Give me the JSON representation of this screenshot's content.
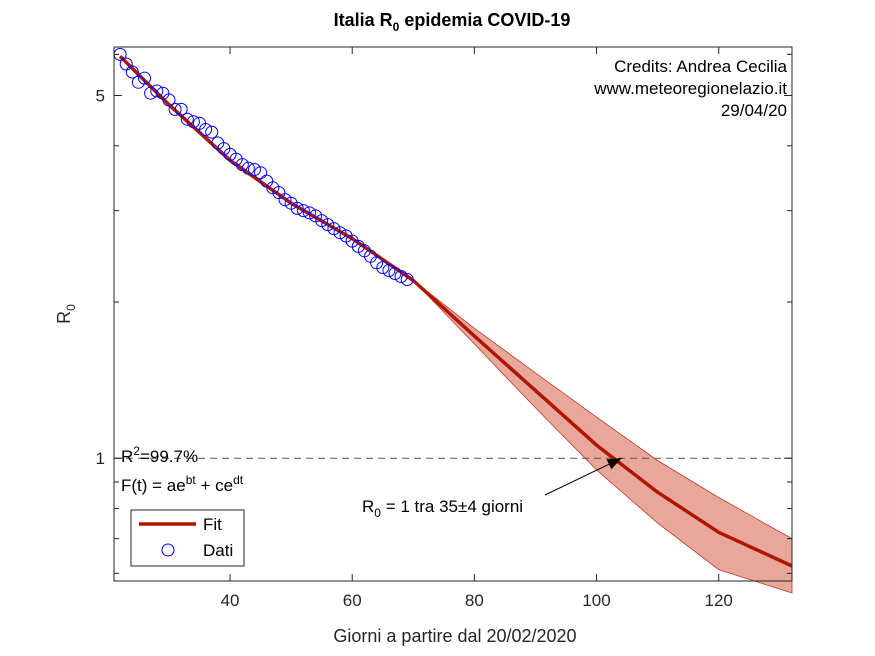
{
  "chart_data": {
    "type": "scatter",
    "title": {
      "prefix": "Italia R",
      "subscript": "0",
      "suffix": " epidemia COVID-19"
    },
    "xlabel": "Giorni a partire dal 20/02/2020",
    "ylabel": {
      "main": "R",
      "subscript": "0"
    },
    "xlim": [
      21,
      132
    ],
    "ylim": [
      0.58,
      6.2
    ],
    "yscale": "log",
    "xticks": [
      40,
      60,
      80,
      100,
      120
    ],
    "yticks_labeled": [
      1,
      5
    ],
    "threshold_line": 1,
    "credits": [
      "Credits: Andrea Cecilia",
      "www.meteoregionelazio.it",
      "29/04/20"
    ],
    "stats": {
      "r2_prefix": "R",
      "r2_sup": "2",
      "r2_value": "=99.7%",
      "formula_a": "F(t) = ae",
      "formula_b_sup": "bt",
      "formula_c": " + ce",
      "formula_d_sup": "dt"
    },
    "annotation": {
      "prefix": "R",
      "subscript": "0",
      "text": " = 1 tra 35±4 giorni",
      "arrow_target": [
        104.1,
        1.0
      ]
    },
    "legend": {
      "placement": "bottom-left",
      "entries": [
        "Fit",
        "Dati"
      ]
    },
    "colors": {
      "fit": "#b01500",
      "band_fill": "#e8a79b",
      "band_edge": "#c0392b",
      "data": "#0000ff",
      "threshold": "#555555"
    },
    "series": [
      {
        "name": "Dati",
        "x": [
          22,
          23,
          24,
          25,
          26,
          27,
          28,
          29,
          30,
          31,
          32,
          33,
          34,
          35,
          36,
          37,
          38,
          39,
          40,
          41,
          42,
          43,
          44,
          45,
          46,
          47,
          48,
          49,
          50,
          51,
          52,
          53,
          54,
          55,
          56,
          57,
          58,
          59,
          60,
          61,
          62,
          63,
          64,
          65,
          66,
          67,
          68,
          69
        ],
        "y": [
          6.0,
          5.75,
          5.55,
          5.3,
          5.4,
          5.05,
          5.1,
          5.05,
          4.9,
          4.7,
          4.7,
          4.5,
          4.45,
          4.42,
          4.3,
          4.25,
          4.05,
          3.95,
          3.85,
          3.77,
          3.68,
          3.62,
          3.6,
          3.55,
          3.42,
          3.32,
          3.25,
          3.15,
          3.1,
          3.03,
          3.0,
          2.97,
          2.93,
          2.87,
          2.82,
          2.77,
          2.72,
          2.68,
          2.62,
          2.56,
          2.51,
          2.45,
          2.38,
          2.33,
          2.3,
          2.27,
          2.24,
          2.21
        ]
      },
      {
        "name": "Fit",
        "x": [
          22,
          30,
          40,
          50,
          60,
          70,
          80,
          90,
          100,
          110,
          120,
          132
        ],
        "y": [
          5.95,
          4.8,
          3.75,
          3.1,
          2.65,
          2.2,
          1.72,
          1.35,
          1.06,
          0.86,
          0.72,
          0.62
        ],
        "band_lower": [
          5.95,
          4.8,
          3.75,
          3.1,
          2.65,
          2.2,
          1.66,
          1.25,
          0.95,
          0.75,
          0.61,
          0.55
        ],
        "band_upper": [
          5.95,
          4.8,
          3.75,
          3.1,
          2.65,
          2.2,
          1.78,
          1.46,
          1.2,
          0.99,
          0.84,
          0.7
        ]
      }
    ]
  }
}
